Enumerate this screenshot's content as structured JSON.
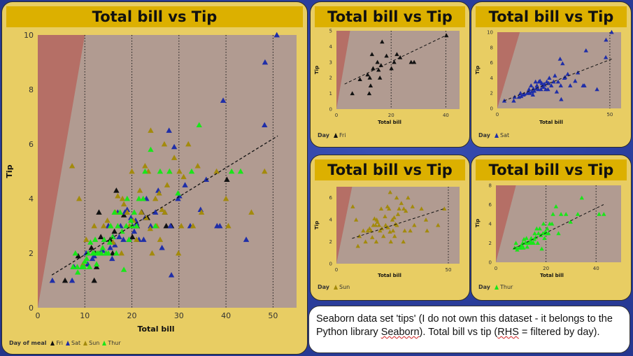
{
  "colors": {
    "Fri": "#111111",
    "Sat": "#1f2ea8",
    "Sun": "#a38a0c",
    "Thur": "#19e619",
    "panel": "#e8cd63",
    "title_bar": "#dcb000",
    "plot_bg": "#b19b91",
    "wedge": "#b56f66"
  },
  "note": {
    "line1_a": "Seaborn data set 'tips' (I do not own this dataset - it belongs to the",
    "line2_a": "Python library ",
    "line2_b": "Seaborn",
    "line2_c": "). Total bill vs tip (",
    "line2_d": "RHS",
    "line2_e": " = filtered by day)."
  },
  "chart_data": [
    {
      "type": "scatter",
      "title": "Total bill vs Tip",
      "xlabel": "Total bill",
      "ylabel": "Tip",
      "xlim": [
        0,
        55
      ],
      "ylim": [
        0,
        10
      ],
      "xticks": [
        0,
        10,
        20,
        30,
        40,
        50
      ],
      "yticks": [
        0,
        2,
        4,
        6,
        8,
        10
      ],
      "legend_title": "Day of meal",
      "legend_entries": [
        "Fri",
        "Sat",
        "Sun",
        "Thur"
      ],
      "vlines": [
        10,
        20,
        30,
        40,
        50
      ],
      "trend": [
        [
          3,
          1.2
        ],
        [
          51,
          6.3
        ]
      ],
      "series": [
        {
          "name": "Fri",
          "points": [
            [
              5.8,
              1.0
            ],
            [
              8.6,
              1.9
            ],
            [
              11.4,
              2.2
            ],
            [
              12.2,
              2.0
            ],
            [
              12.5,
              1.5
            ],
            [
              13.4,
              2.6
            ],
            [
              15.0,
              3.0
            ],
            [
              15.4,
              2.5
            ],
            [
              15.9,
              2.0
            ],
            [
              16.3,
              2.8
            ],
            [
              16.7,
              4.3
            ],
            [
              18.3,
              3.4
            ],
            [
              20.1,
              2.6
            ],
            [
              21.1,
              3.0
            ],
            [
              22.1,
              3.5
            ],
            [
              23.3,
              3.3
            ],
            [
              27.3,
              3.0
            ],
            [
              28.4,
              3.0
            ],
            [
              40.2,
              4.7
            ],
            [
              12.0,
              1.0
            ],
            [
              13.0,
              3.5
            ]
          ]
        },
        {
          "name": "Sat",
          "points": [
            [
              3.1,
              1.0
            ],
            [
              7.3,
              1.0
            ],
            [
              7.7,
              1.5
            ],
            [
              9.6,
              1.5
            ],
            [
              10.3,
              2.0
            ],
            [
              10.6,
              1.6
            ],
            [
              11.6,
              1.8
            ],
            [
              12.0,
              1.9
            ],
            [
              13.3,
              2.0
            ],
            [
              13.8,
              2.1
            ],
            [
              14.1,
              2.5
            ],
            [
              14.5,
              2.0
            ],
            [
              15.0,
              3.0
            ],
            [
              15.4,
              2.2
            ],
            [
              15.8,
              1.8
            ],
            [
              16.0,
              2.6
            ],
            [
              16.4,
              2.3
            ],
            [
              17.0,
              3.5
            ],
            [
              17.3,
              2.6
            ],
            [
              17.6,
              3.0
            ],
            [
              18.2,
              2.5
            ],
            [
              18.5,
              3.5
            ],
            [
              19.0,
              3.6
            ],
            [
              19.4,
              2.5
            ],
            [
              19.8,
              3.3
            ],
            [
              20.1,
              3.0
            ],
            [
              20.5,
              2.8
            ],
            [
              20.8,
              3.2
            ],
            [
              21.0,
              3.1
            ],
            [
              21.5,
              2.5
            ],
            [
              22.0,
              3.5
            ],
            [
              22.5,
              2.5
            ],
            [
              22.8,
              3.3
            ],
            [
              23.1,
              4.0
            ],
            [
              24.0,
              3.0
            ],
            [
              25.0,
              3.5
            ],
            [
              25.6,
              4.3
            ],
            [
              26.4,
              2.2
            ],
            [
              27.0,
              3.5
            ],
            [
              28.2,
              3.0
            ],
            [
              28.4,
              1.2
            ],
            [
              29.0,
              5.9
            ],
            [
              29.8,
              4.0
            ],
            [
              30.1,
              4.1
            ],
            [
              31.3,
              4.5
            ],
            [
              32.4,
              3.0
            ],
            [
              34.6,
              3.6
            ],
            [
              35.8,
              4.7
            ],
            [
              38.1,
              3.0
            ],
            [
              38.7,
              3.0
            ],
            [
              39.4,
              7.6
            ],
            [
              44.3,
              2.5
            ],
            [
              48.2,
              6.7
            ],
            [
              48.3,
              9.0
            ],
            [
              50.8,
              10.0
            ],
            [
              27.9,
              6.5
            ]
          ]
        },
        {
          "name": "Sun",
          "points": [
            [
              7.3,
              5.2
            ],
            [
              8.8,
              4.0
            ],
            [
              9.6,
              1.6
            ],
            [
              10.3,
              2.5
            ],
            [
              12.0,
              3.0
            ],
            [
              13.0,
              2.0
            ],
            [
              14.0,
              3.0
            ],
            [
              14.8,
              3.2
            ],
            [
              15.5,
              3.0
            ],
            [
              16.0,
              2.4
            ],
            [
              16.5,
              3.5
            ],
            [
              17.5,
              3.5
            ],
            [
              17.8,
              2.0
            ],
            [
              18.0,
              4.0
            ],
            [
              18.3,
              3.8
            ],
            [
              19.0,
              3.5
            ],
            [
              19.5,
              3.0
            ],
            [
              20.0,
              5.0
            ],
            [
              20.3,
              3.2
            ],
            [
              21.0,
              2.5
            ],
            [
              21.7,
              4.3
            ],
            [
              22.0,
              3.5
            ],
            [
              22.8,
              5.2
            ],
            [
              23.0,
              3.3
            ],
            [
              23.5,
              5.0
            ],
            [
              24.0,
              6.5
            ],
            [
              24.3,
              2.0
            ],
            [
              25.0,
              4.0
            ],
            [
              25.3,
              3.0
            ],
            [
              25.8,
              4.2
            ],
            [
              26.0,
              2.5
            ],
            [
              26.4,
              3.6
            ],
            [
              27.0,
              3.5
            ],
            [
              27.5,
              4.5
            ],
            [
              28.0,
              5.0
            ],
            [
              29.0,
              5.5
            ],
            [
              30.1,
              5.0
            ],
            [
              30.5,
              3.0
            ],
            [
              31.0,
              4.8
            ],
            [
              32.0,
              6.0
            ],
            [
              34.0,
              5.2
            ],
            [
              34.8,
              3.5
            ],
            [
              40.0,
              4.0
            ],
            [
              40.5,
              3.0
            ],
            [
              45.4,
              3.5
            ],
            [
              48.2,
              5.0
            ],
            [
              38.0,
              5.0
            ],
            [
              33.0,
              3.0
            ],
            [
              23.9,
              2.9
            ],
            [
              29.9,
              2.0
            ],
            [
              26.9,
              6.0
            ],
            [
              17.0,
              4.1
            ]
          ]
        },
        {
          "name": "Thur",
          "points": [
            [
              7.5,
              1.5
            ],
            [
              8.0,
              2.0
            ],
            [
              8.4,
              1.5
            ],
            [
              8.5,
              1.3
            ],
            [
              9.4,
              1.5
            ],
            [
              9.8,
              1.5
            ],
            [
              10.0,
              1.7
            ],
            [
              10.4,
              1.8
            ],
            [
              10.7,
              2.0
            ],
            [
              11.0,
              1.5
            ],
            [
              11.2,
              2.4
            ],
            [
              11.7,
              2.0
            ],
            [
              12.0,
              2.0
            ],
            [
              12.2,
              2.5
            ],
            [
              12.6,
              2.0
            ],
            [
              13.0,
              2.0
            ],
            [
              13.5,
              2.0
            ],
            [
              13.8,
              2.2
            ],
            [
              14.1,
              2.5
            ],
            [
              14.5,
              2.0
            ],
            [
              15.0,
              2.0
            ],
            [
              15.5,
              3.0
            ],
            [
              15.9,
              2.6
            ],
            [
              16.3,
              3.5
            ],
            [
              16.7,
              2.0
            ],
            [
              17.0,
              3.0
            ],
            [
              17.5,
              3.5
            ],
            [
              17.9,
              2.8
            ],
            [
              18.3,
              1.4
            ],
            [
              18.8,
              3.0
            ],
            [
              19.0,
              4.0
            ],
            [
              19.4,
              2.5
            ],
            [
              19.8,
              3.2
            ],
            [
              20.0,
              3.0
            ],
            [
              20.5,
              3.5
            ],
            [
              21.0,
              3.0
            ],
            [
              21.5,
              4.0
            ],
            [
              22.4,
              4.0
            ],
            [
              22.8,
              5.0
            ],
            [
              24.0,
              5.8
            ],
            [
              25.0,
              3.0
            ],
            [
              26.0,
              5.0
            ],
            [
              28.0,
              5.0
            ],
            [
              29.8,
              4.2
            ],
            [
              32.7,
              5.0
            ],
            [
              34.3,
              6.7
            ],
            [
              41.2,
              5.0
            ],
            [
              43.1,
              5.0
            ],
            [
              12.5,
              1.6
            ],
            [
              15.3,
              2.4
            ]
          ]
        }
      ]
    },
    {
      "type": "scatter",
      "title": "Total bill vs Tip",
      "xlabel": "Total bill",
      "ylabel": "Tip",
      "xlim": [
        0,
        45
      ],
      "ylim": [
        0,
        5
      ],
      "xticks": [
        0,
        20,
        40
      ],
      "yticks": [
        0,
        1,
        2,
        3,
        4,
        5
      ],
      "vlines": [
        20,
        40
      ],
      "trend": [
        [
          3,
          1.6
        ],
        [
          40,
          4.7
        ]
      ],
      "legend_title": "Day",
      "legend_entries": [
        "Fri"
      ],
      "series_name": "Fri"
    },
    {
      "type": "scatter",
      "title": "Total bill vs Tip",
      "xlabel": "Total bill",
      "ylabel": "Tip",
      "xlim": [
        0,
        55
      ],
      "ylim": [
        0,
        10
      ],
      "xticks": [
        0,
        50
      ],
      "yticks": [
        0,
        2,
        4,
        6,
        8,
        10
      ],
      "vlines": [
        50
      ],
      "trend": [
        [
          3,
          1.0
        ],
        [
          51,
          6.5
        ]
      ],
      "legend_title": "Day",
      "legend_entries": [
        "Sat"
      ],
      "series_name": "Sat"
    },
    {
      "type": "scatter",
      "title": "Total bill vs Tip",
      "xlabel": "Total bill",
      "ylabel": "Tip",
      "xlim": [
        0,
        55
      ],
      "ylim": [
        0,
        7
      ],
      "xticks": [
        0,
        50
      ],
      "yticks": [
        0,
        2,
        4,
        6
      ],
      "vlines": [
        50
      ],
      "trend": [
        [
          7,
          2.3
        ],
        [
          48,
          5.0
        ]
      ],
      "legend_title": "Day",
      "legend_entries": [
        "Sun"
      ],
      "series_name": "Sun"
    },
    {
      "type": "scatter",
      "title": "Total bill vs Tip",
      "xlabel": "Total bill",
      "ylabel": "Tip",
      "xlim": [
        0,
        50
      ],
      "ylim": [
        0,
        8
      ],
      "xticks": [
        0,
        20,
        40
      ],
      "yticks": [
        0,
        2,
        4,
        6,
        8
      ],
      "vlines": [
        20,
        40
      ],
      "trend": [
        [
          7,
          1.4
        ],
        [
          43,
          6.0
        ]
      ],
      "legend_title": "Day",
      "legend_entries": [
        "Thur"
      ],
      "series_name": "Thur"
    }
  ]
}
